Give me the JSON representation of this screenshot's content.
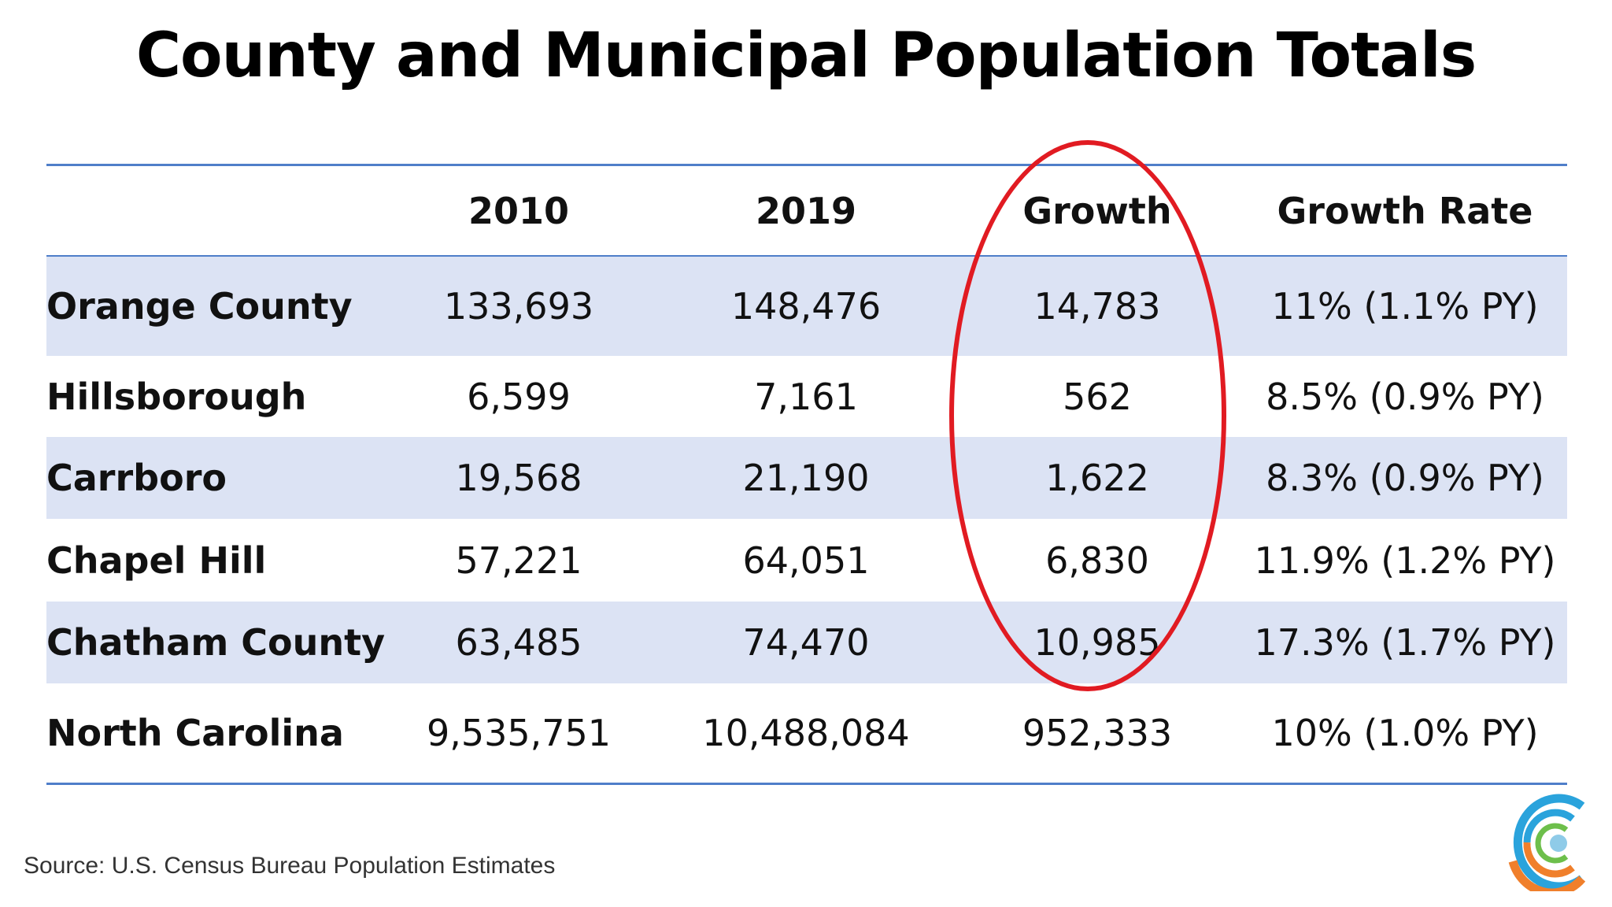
{
  "title": "County and Municipal Population Totals",
  "table": {
    "headers": [
      "",
      "2010",
      "2019",
      "Growth",
      "Growth Rate"
    ],
    "rows": [
      {
        "name": "Orange County",
        "y2010": "133,693",
        "y2019": "148,476",
        "growth": "14,783",
        "rate": "11%  (1.1% PY)",
        "shaded": true
      },
      {
        "name": "Hillsborough",
        "y2010": "6,599",
        "y2019": "7,161",
        "growth": "562",
        "rate": "8.5%  (0.9% PY)",
        "shaded": false
      },
      {
        "name": "Carrboro",
        "y2010": "19,568",
        "y2019": "21,190",
        "growth": "1,622",
        "rate": "8.3%  (0.9% PY)",
        "shaded": true
      },
      {
        "name": "Chapel Hill",
        "y2010": "57,221",
        "y2019": "64,051",
        "growth": "6,830",
        "rate": "11.9%  (1.2% PY)",
        "shaded": false
      },
      {
        "name": "Chatham County",
        "y2010": "63,485",
        "y2019": "74,470",
        "growth": "10,985",
        "rate": "17.3%  (1.7% PY)",
        "shaded": true
      },
      {
        "name": "North Carolina",
        "y2010": "9,535,751",
        "y2019": "10,488,084",
        "growth": "952,333",
        "rate": "10%  (1.0% PY)",
        "shaded": false
      }
    ]
  },
  "source": "Source: U.S. Census Bureau Population Estimates",
  "colors": {
    "rule": "#4f7ec9",
    "row_shade": "#dce3f4",
    "highlight": "#e11b22",
    "logo_blue": "#2aa3dc",
    "logo_orange": "#f07f2b",
    "logo_green": "#6dbf4b",
    "logo_dot": "#8fcbe8"
  },
  "icons": {
    "logo": "concentric-c-logo-icon",
    "highlight": "red-ellipse-highlight"
  }
}
